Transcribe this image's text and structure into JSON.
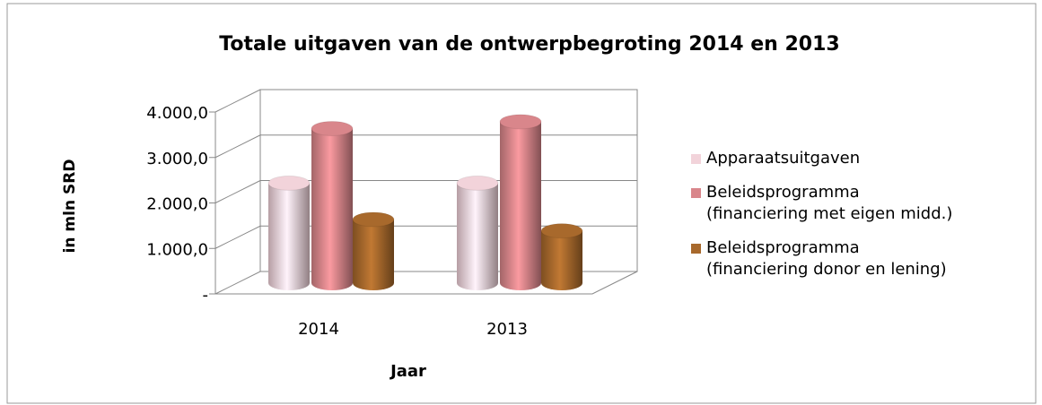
{
  "chart_data": {
    "type": "bar3d",
    "title": "Totale uitgaven van de ontwerpbegroting 2014 en 2013",
    "x_label": "Jaar",
    "y_label": "in mln SRD",
    "categories": [
      "2014",
      "2013"
    ],
    "series": [
      {
        "name": "Apparaatsuitgaven",
        "color": "#f2d3da",
        "values": [
          2200,
          2200
        ]
      },
      {
        "name": "Beleidsprogramma\n(financiering met eigen midd.)",
        "color": "#d9868b",
        "values": [
          3400,
          3550
        ]
      },
      {
        "name": "Beleidsprogramma\n(financiering donor en lening)",
        "color": "#a8692c",
        "values": [
          1400,
          1150
        ]
      }
    ],
    "ylim": [
      0,
      4000
    ],
    "yticks": [
      {
        "value": 0,
        "label": "-"
      },
      {
        "value": 1000,
        "label": "1.000,0"
      },
      {
        "value": 2000,
        "label": "2.000,0"
      },
      {
        "value": 3000,
        "label": "3.000,0"
      },
      {
        "value": 4000,
        "label": "4.000,0"
      }
    ],
    "grid": true,
    "legend": "right"
  }
}
